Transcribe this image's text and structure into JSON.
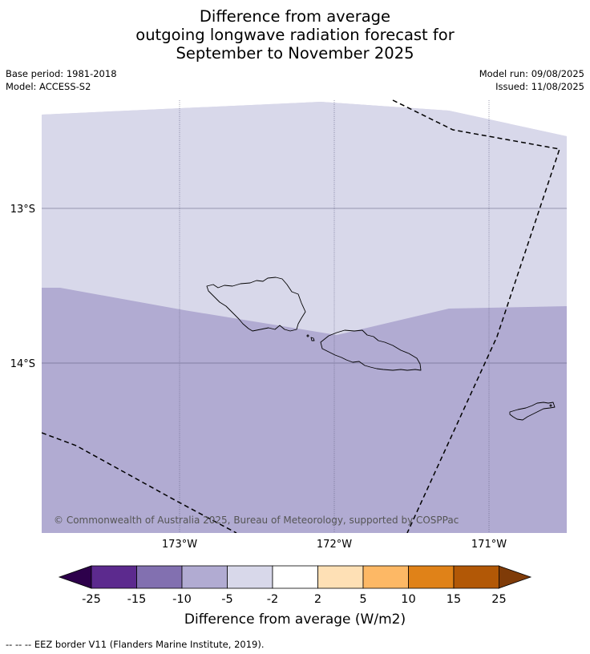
{
  "title": {
    "line1": "Difference from average",
    "line2": "outgoing longwave radiation forecast for",
    "line3": "September to November 2025"
  },
  "meta": {
    "base_period": "Base period: 1981-2018",
    "model": "Model: ACCESS-S2",
    "model_run": "Model run: 09/08/2025",
    "issued": "Issued: 11/08/2025"
  },
  "map": {
    "lat_labels": [
      "13°S",
      "14°S"
    ],
    "lon_labels": [
      "173°W",
      "172°W",
      "171°W"
    ],
    "copyright": "© Commonwealth of Australia 2025, Bureau of Meteorology, supported by COSPPac",
    "upper_fill": "#d8d8ea",
    "lower_fill": "#b1abd2"
  },
  "colorbar": {
    "ticks": [
      "-25",
      "-15",
      "-10",
      "-5",
      "-2",
      "2",
      "5",
      "10",
      "15",
      "25"
    ],
    "colors": [
      "#5c2a8e",
      "#8270b0",
      "#b1abd2",
      "#d8d8ea",
      "#ffffff",
      "#fee0b5",
      "#fdb865",
      "#e08218",
      "#b25806"
    ],
    "low_color": "#2d004b",
    "high_color": "#7f3b08",
    "label": "Difference from average (W/m2)"
  },
  "footer": "--  --  -- EEZ border V11 (Flanders Marine Institute, 2019)."
}
